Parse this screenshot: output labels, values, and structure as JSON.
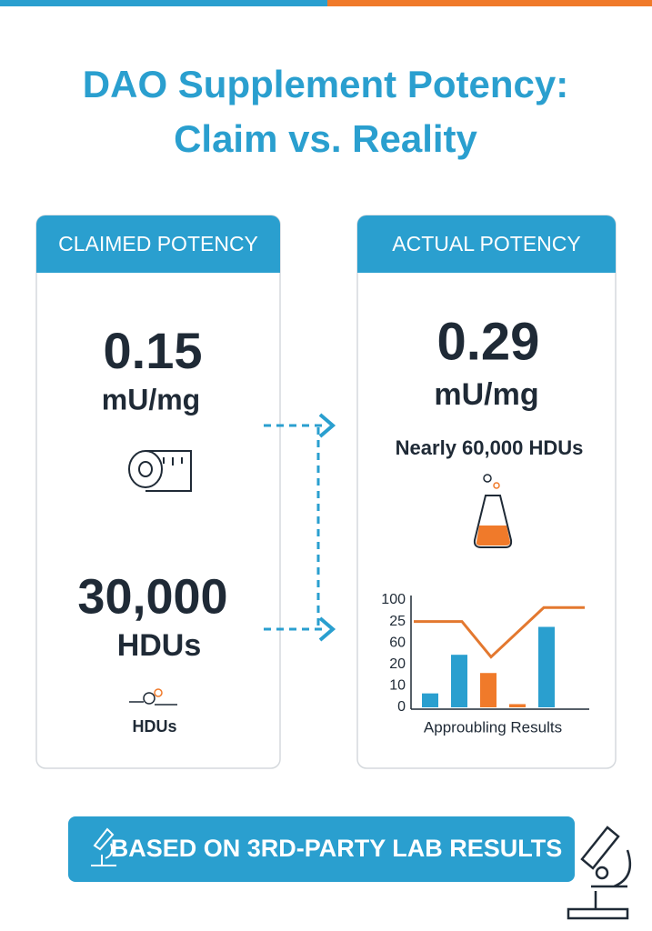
{
  "title_lines": [
    "DAO Supplement Potency:",
    "Claim vs. Reality"
  ],
  "claimed": {
    "header": "CLAIMED POTENCY",
    "value": "0.15",
    "unit": "mU/mg",
    "hdu_value": "30,000",
    "hdu_unit": "HDUs",
    "icon_label": "HDUs"
  },
  "actual": {
    "header": "ACTUAL POTENCY",
    "value": "0.29",
    "unit": "mU/mg",
    "note": "Nearly 60,000 HDUs"
  },
  "mini_chart": {
    "type": "bar",
    "ylim": [
      0,
      100
    ],
    "tick_labels": [
      "100",
      "25",
      "60",
      "20",
      "10",
      "0"
    ],
    "values": [
      13,
      49,
      32,
      3,
      75
    ],
    "colors": [
      "#2a9fcf",
      "#2a9fcf",
      "#f07a2a",
      "#f07a2a",
      "#2a9fcf"
    ],
    "line": {
      "color": "#e3782f",
      "values": [
        80,
        80,
        47,
        93,
        93
      ]
    },
    "caption": "Approubling Results"
  },
  "banner": "BASED ON 3RD-PARTY LAB RESULTS"
}
